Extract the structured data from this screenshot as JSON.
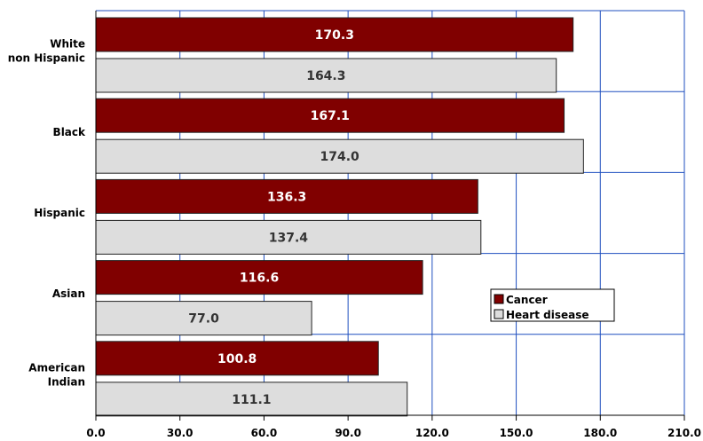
{
  "chart_data": {
    "type": "bar",
    "orientation": "horizontal",
    "categories": [
      [
        "White",
        "non Hispanic"
      ],
      [
        "Black"
      ],
      [
        "Hispanic"
      ],
      [
        "Asian"
      ],
      [
        "American",
        "Indian"
      ]
    ],
    "series": [
      {
        "name": "Cancer",
        "color": "#800000",
        "values": [
          170.3,
          167.1,
          136.3,
          116.6,
          100.8
        ]
      },
      {
        "name": "Heart disease",
        "color": "#dddddd",
        "values": [
          164.3,
          174.0,
          137.4,
          77.0,
          111.1
        ]
      }
    ],
    "data_labels": true,
    "data_label_colors": [
      "#ffffff",
      "#333333"
    ],
    "xlim": [
      0,
      210
    ],
    "xticks": [
      0,
      30,
      60,
      90,
      120,
      150,
      180,
      210
    ],
    "tick_decimals": 1,
    "grid": true,
    "grid_color": "#1f4fbf",
    "legend_position": "right, inside plot area, near bottom",
    "title": "",
    "xlabel": "",
    "ylabel": ""
  }
}
